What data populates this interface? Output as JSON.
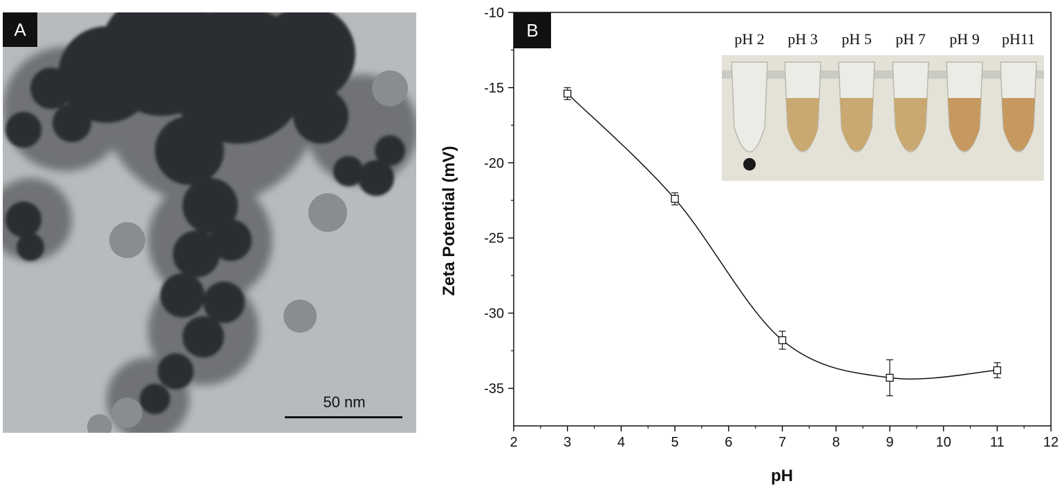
{
  "panel_a": {
    "tag": "A",
    "scale_bar_label": "50 nm"
  },
  "panel_b": {
    "tag": "B",
    "inset_labels": [
      "pH 2",
      "pH 3",
      "pH 5",
      "pH 7",
      "pH 9",
      "pH11"
    ]
  },
  "chart_data": {
    "type": "scatter",
    "title": "",
    "xlabel": "pH",
    "ylabel": "Zeta Potential (mV)",
    "xlim": [
      2,
      12
    ],
    "ylim": [
      -37.5,
      -10
    ],
    "x_ticks": [
      "2",
      "3",
      "4",
      "5",
      "6",
      "7",
      "8",
      "9",
      "10",
      "11",
      "12"
    ],
    "y_ticks": [
      "-10",
      "-15",
      "-20",
      "-25",
      "-30",
      "-35"
    ],
    "grid": false,
    "marker": "open-square",
    "fit_line": "smooth",
    "series": [
      {
        "x": [
          3,
          5,
          7,
          9,
          11
        ],
        "y": [
          -15.4,
          -22.4,
          -31.8,
          -34.3,
          -33.8
        ],
        "error": [
          0.4,
          0.4,
          0.6,
          1.2,
          0.5
        ]
      }
    ]
  }
}
